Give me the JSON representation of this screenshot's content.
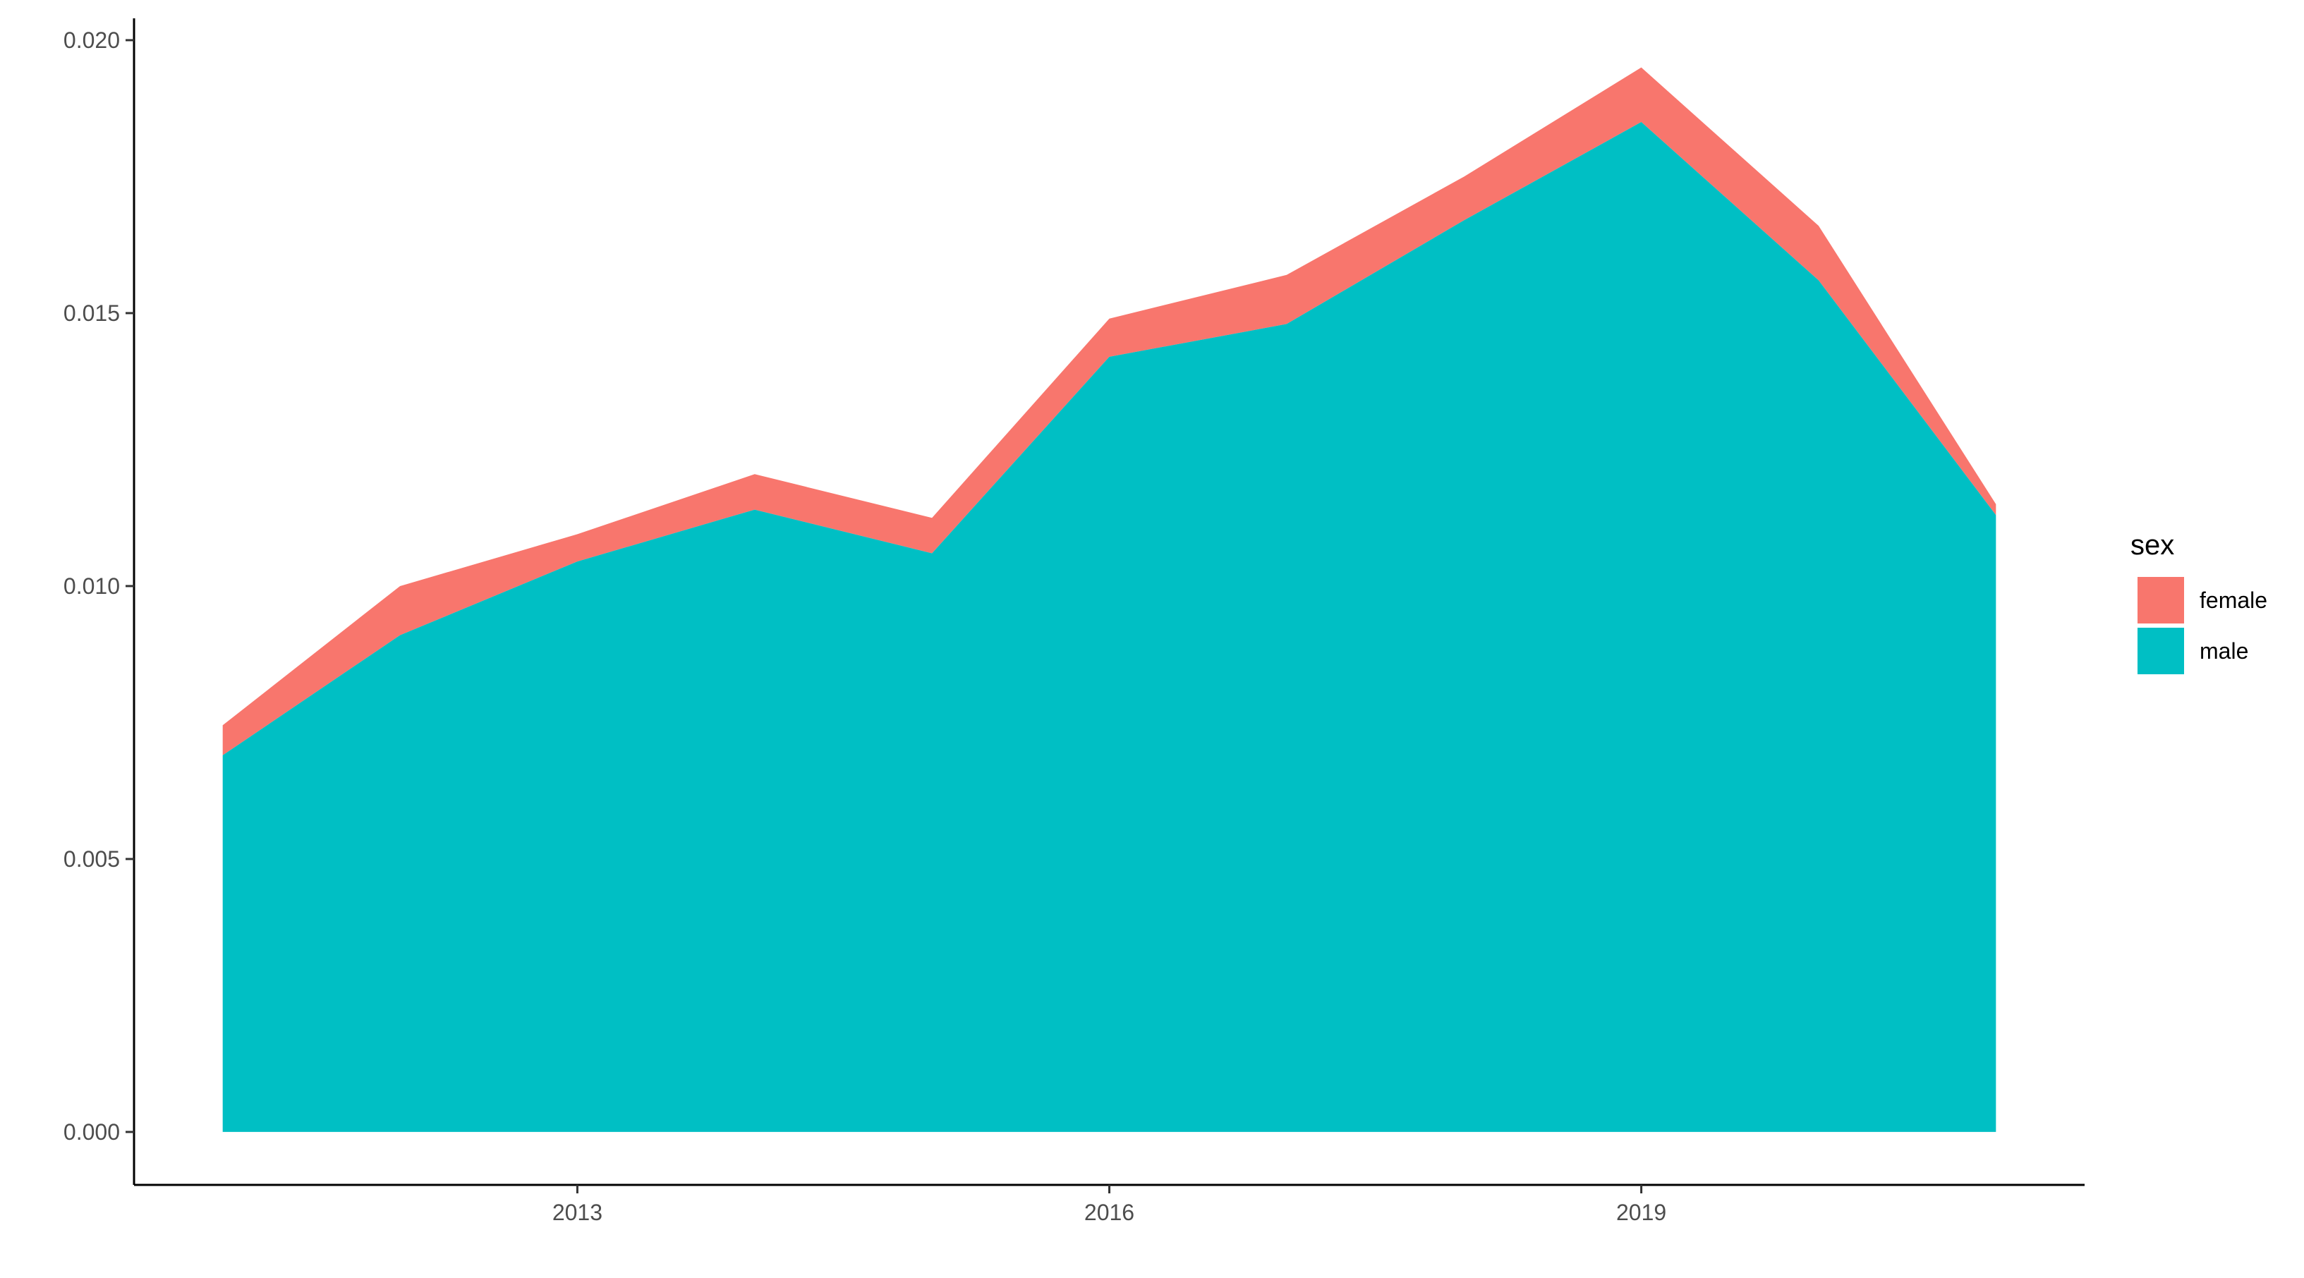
{
  "chart_data": {
    "type": "area",
    "stacked": true,
    "x": [
      2011,
      2012,
      2013,
      2014,
      2015,
      2016,
      2017,
      2018,
      2019,
      2020,
      2021
    ],
    "series": [
      {
        "name": "male",
        "color": "#00BFC4",
        "values": [
          0.0069,
          0.0091,
          0.01045,
          0.0114,
          0.0106,
          0.0142,
          0.0148,
          0.0167,
          0.0185,
          0.0156,
          0.0113
        ]
      },
      {
        "name": "female",
        "color": "#F8766D",
        "values": [
          0.00055,
          0.0009,
          0.0005,
          0.00065,
          0.00065,
          0.0007,
          0.0009,
          0.0008,
          0.001,
          0.001,
          0.0002
        ]
      }
    ],
    "xlim": [
      2010.5,
      2021.5
    ],
    "ylim": [
      -0.00097,
      0.0204
    ],
    "x_ticks": [
      2013,
      2016,
      2019
    ],
    "x_tick_labels": [
      "2013",
      "2016",
      "2019"
    ],
    "y_ticks": [
      0.0,
      0.005,
      0.01,
      0.015,
      0.02
    ],
    "y_tick_labels": [
      "0.000",
      "0.005",
      "0.010",
      "0.015",
      "0.020"
    ],
    "title": "",
    "xlabel": "",
    "ylabel": "",
    "grid": false,
    "legend": {
      "title": "sex",
      "placement": "right",
      "entries": [
        {
          "label": "female",
          "color": "#F8766D"
        },
        {
          "label": "male",
          "color": "#00BFC4"
        }
      ]
    }
  }
}
